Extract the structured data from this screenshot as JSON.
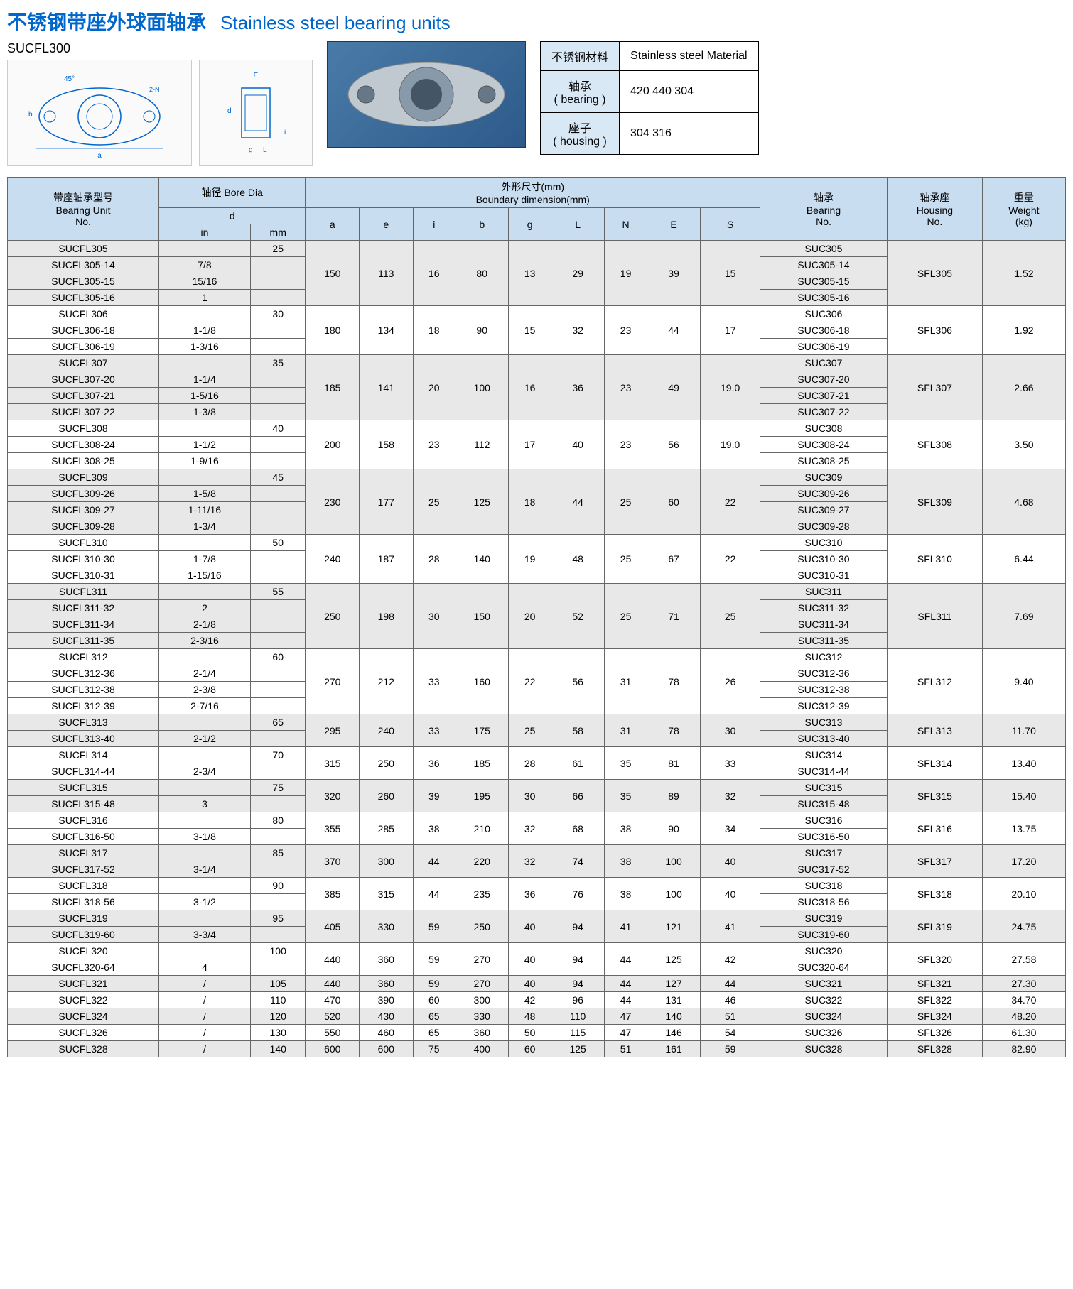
{
  "title": {
    "cn": "不锈钢带座外球面轴承",
    "en": "Stainless steel bearing units"
  },
  "model": "SUCFL300",
  "material": {
    "header_cn": "不锈钢材料",
    "header_en": "Stainless steel Material",
    "bearing_cn": "轴承",
    "bearing_en": "( bearing )",
    "bearing_val": "420 440 304",
    "housing_cn": "座子",
    "housing_en": "( housing )",
    "housing_val": "304 316"
  },
  "headers": {
    "unit_no_cn": "带座轴承型号",
    "unit_no_en": "Bearing Unit",
    "unit_no_en2": "No.",
    "bore_cn": "轴径 Bore Dia",
    "bore_d": "d",
    "bore_in": "in",
    "bore_mm": "mm",
    "dim_cn": "外形尺寸(mm)",
    "dim_en": "Boundary dimension(mm)",
    "a": "a",
    "e": "e",
    "i": "i",
    "b": "b",
    "g": "g",
    "L": "L",
    "N": "N",
    "E": "E",
    "S": "S",
    "brg_cn": "轴承",
    "brg_en": "Bearing",
    "brg_no": "No.",
    "hsg_cn": "轴承座",
    "hsg_en": "Housing",
    "hsg_no": "No.",
    "wt_cn": "重量",
    "wt_en": "Weight",
    "wt_kg": "(kg)"
  },
  "groups": [
    {
      "alt": true,
      "dims": [
        "150",
        "113",
        "16",
        "80",
        "13",
        "29",
        "19",
        "39",
        "15"
      ],
      "hsg": "SFL305",
      "wt": "1.52",
      "rows": [
        {
          "no": "SUCFL305",
          "in": "",
          "mm": "25",
          "brg": "SUC305"
        },
        {
          "no": "SUCFL305-14",
          "in": "7/8",
          "mm": "",
          "brg": "SUC305-14"
        },
        {
          "no": "SUCFL305-15",
          "in": "15/16",
          "mm": "",
          "brg": "SUC305-15"
        },
        {
          "no": "SUCFL305-16",
          "in": "1",
          "mm": "",
          "brg": "SUC305-16"
        }
      ]
    },
    {
      "alt": false,
      "dims": [
        "180",
        "134",
        "18",
        "90",
        "15",
        "32",
        "23",
        "44",
        "17"
      ],
      "hsg": "SFL306",
      "wt": "1.92",
      "rows": [
        {
          "no": "SUCFL306",
          "in": "",
          "mm": "30",
          "brg": "SUC306"
        },
        {
          "no": "SUCFL306-18",
          "in": "1-1/8",
          "mm": "",
          "brg": "SUC306-18"
        },
        {
          "no": "SUCFL306-19",
          "in": "1-3/16",
          "mm": "",
          "brg": "SUC306-19"
        }
      ]
    },
    {
      "alt": true,
      "dims": [
        "185",
        "141",
        "20",
        "100",
        "16",
        "36",
        "23",
        "49",
        "19.0"
      ],
      "hsg": "SFL307",
      "wt": "2.66",
      "rows": [
        {
          "no": "SUCFL307",
          "in": "",
          "mm": "35",
          "brg": "SUC307"
        },
        {
          "no": "SUCFL307-20",
          "in": "1-1/4",
          "mm": "",
          "brg": "SUC307-20"
        },
        {
          "no": "SUCFL307-21",
          "in": "1-5/16",
          "mm": "",
          "brg": "SUC307-21"
        },
        {
          "no": "SUCFL307-22",
          "in": "1-3/8",
          "mm": "",
          "brg": "SUC307-22"
        }
      ]
    },
    {
      "alt": false,
      "dims": [
        "200",
        "158",
        "23",
        "112",
        "17",
        "40",
        "23",
        "56",
        "19.0"
      ],
      "hsg": "SFL308",
      "wt": "3.50",
      "rows": [
        {
          "no": "SUCFL308",
          "in": "",
          "mm": "40",
          "brg": "SUC308"
        },
        {
          "no": "SUCFL308-24",
          "in": "1-1/2",
          "mm": "",
          "brg": "SUC308-24"
        },
        {
          "no": "SUCFL308-25",
          "in": "1-9/16",
          "mm": "",
          "brg": "SUC308-25"
        }
      ]
    },
    {
      "alt": true,
      "dims": [
        "230",
        "177",
        "25",
        "125",
        "18",
        "44",
        "25",
        "60",
        "22"
      ],
      "hsg": "SFL309",
      "wt": "4.68",
      "rows": [
        {
          "no": "SUCFL309",
          "in": "",
          "mm": "45",
          "brg": "SUC309"
        },
        {
          "no": "SUCFL309-26",
          "in": "1-5/8",
          "mm": "",
          "brg": "SUC309-26"
        },
        {
          "no": "SUCFL309-27",
          "in": "1-11/16",
          "mm": "",
          "brg": "SUC309-27"
        },
        {
          "no": "SUCFL309-28",
          "in": "1-3/4",
          "mm": "",
          "brg": "SUC309-28"
        }
      ]
    },
    {
      "alt": false,
      "dims": [
        "240",
        "187",
        "28",
        "140",
        "19",
        "48",
        "25",
        "67",
        "22"
      ],
      "hsg": "SFL310",
      "wt": "6.44",
      "rows": [
        {
          "no": "SUCFL310",
          "in": "",
          "mm": "50",
          "brg": "SUC310"
        },
        {
          "no": "SUCFL310-30",
          "in": "1-7/8",
          "mm": "",
          "brg": "SUC310-30"
        },
        {
          "no": "SUCFL310-31",
          "in": "1-15/16",
          "mm": "",
          "brg": "SUC310-31"
        }
      ]
    },
    {
      "alt": true,
      "dims": [
        "250",
        "198",
        "30",
        "150",
        "20",
        "52",
        "25",
        "71",
        "25"
      ],
      "hsg": "SFL311",
      "wt": "7.69",
      "rows": [
        {
          "no": "SUCFL311",
          "in": "",
          "mm": "55",
          "brg": "SUC311"
        },
        {
          "no": "SUCFL311-32",
          "in": "2",
          "mm": "",
          "brg": "SUC311-32"
        },
        {
          "no": "SUCFL311-34",
          "in": "2-1/8",
          "mm": "",
          "brg": "SUC311-34"
        },
        {
          "no": "SUCFL311-35",
          "in": "2-3/16",
          "mm": "",
          "brg": "SUC311-35"
        }
      ]
    },
    {
      "alt": false,
      "dims": [
        "270",
        "212",
        "33",
        "160",
        "22",
        "56",
        "31",
        "78",
        "26"
      ],
      "hsg": "SFL312",
      "wt": "9.40",
      "rows": [
        {
          "no": "SUCFL312",
          "in": "",
          "mm": "60",
          "brg": "SUC312"
        },
        {
          "no": "SUCFL312-36",
          "in": "2-1/4",
          "mm": "",
          "brg": "SUC312-36"
        },
        {
          "no": "SUCFL312-38",
          "in": "2-3/8",
          "mm": "",
          "brg": "SUC312-38"
        },
        {
          "no": "SUCFL312-39",
          "in": "2-7/16",
          "mm": "",
          "brg": "SUC312-39"
        }
      ]
    },
    {
      "alt": true,
      "dims": [
        "295",
        "240",
        "33",
        "175",
        "25",
        "58",
        "31",
        "78",
        "30"
      ],
      "hsg": "SFL313",
      "wt": "11.70",
      "rows": [
        {
          "no": "SUCFL313",
          "in": "",
          "mm": "65",
          "brg": "SUC313"
        },
        {
          "no": "SUCFL313-40",
          "in": "2-1/2",
          "mm": "",
          "brg": "SUC313-40"
        }
      ]
    },
    {
      "alt": false,
      "dims": [
        "315",
        "250",
        "36",
        "185",
        "28",
        "61",
        "35",
        "81",
        "33"
      ],
      "hsg": "SFL314",
      "wt": "13.40",
      "rows": [
        {
          "no": "SUCFL314",
          "in": "",
          "mm": "70",
          "brg": "SUC314"
        },
        {
          "no": "SUCFL314-44",
          "in": "2-3/4",
          "mm": "",
          "brg": "SUC314-44"
        }
      ]
    },
    {
      "alt": true,
      "dims": [
        "320",
        "260",
        "39",
        "195",
        "30",
        "66",
        "35",
        "89",
        "32"
      ],
      "hsg": "SFL315",
      "wt": "15.40",
      "rows": [
        {
          "no": "SUCFL315",
          "in": "",
          "mm": "75",
          "brg": "SUC315"
        },
        {
          "no": "SUCFL315-48",
          "in": "3",
          "mm": "",
          "brg": "SUC315-48"
        }
      ]
    },
    {
      "alt": false,
      "dims": [
        "355",
        "285",
        "38",
        "210",
        "32",
        "68",
        "38",
        "90",
        "34"
      ],
      "hsg": "SFL316",
      "wt": "13.75",
      "rows": [
        {
          "no": "SUCFL316",
          "in": "",
          "mm": "80",
          "brg": "SUC316"
        },
        {
          "no": "SUCFL316-50",
          "in": "3-1/8",
          "mm": "",
          "brg": "SUC316-50"
        }
      ]
    },
    {
      "alt": true,
      "dims": [
        "370",
        "300",
        "44",
        "220",
        "32",
        "74",
        "38",
        "100",
        "40"
      ],
      "hsg": "SFL317",
      "wt": "17.20",
      "rows": [
        {
          "no": "SUCFL317",
          "in": "",
          "mm": "85",
          "brg": "SUC317"
        },
        {
          "no": "SUCFL317-52",
          "in": "3-1/4",
          "mm": "",
          "brg": "SUC317-52"
        }
      ]
    },
    {
      "alt": false,
      "dims": [
        "385",
        "315",
        "44",
        "235",
        "36",
        "76",
        "38",
        "100",
        "40"
      ],
      "hsg": "SFL318",
      "wt": "20.10",
      "rows": [
        {
          "no": "SUCFL318",
          "in": "",
          "mm": "90",
          "brg": "SUC318"
        },
        {
          "no": "SUCFL318-56",
          "in": "3-1/2",
          "mm": "",
          "brg": "SUC318-56"
        }
      ]
    },
    {
      "alt": true,
      "dims": [
        "405",
        "330",
        "59",
        "250",
        "40",
        "94",
        "41",
        "121",
        "41"
      ],
      "hsg": "SFL319",
      "wt": "24.75",
      "rows": [
        {
          "no": "SUCFL319",
          "in": "",
          "mm": "95",
          "brg": "SUC319"
        },
        {
          "no": "SUCFL319-60",
          "in": "3-3/4",
          "mm": "",
          "brg": "SUC319-60"
        }
      ]
    },
    {
      "alt": false,
      "dims": [
        "440",
        "360",
        "59",
        "270",
        "40",
        "94",
        "44",
        "125",
        "42"
      ],
      "hsg": "SFL320",
      "wt": "27.58",
      "rows": [
        {
          "no": "SUCFL320",
          "in": "",
          "mm": "100",
          "brg": "SUC320"
        },
        {
          "no": "SUCFL320-64",
          "in": "4",
          "mm": "",
          "brg": "SUC320-64"
        }
      ]
    },
    {
      "alt": true,
      "dims": [
        "440",
        "360",
        "59",
        "270",
        "40",
        "94",
        "44",
        "127",
        "44"
      ],
      "hsg": "SFL321",
      "wt": "27.30",
      "rows": [
        {
          "no": "SUCFL321",
          "in": "/",
          "mm": "105",
          "brg": "SUC321"
        }
      ]
    },
    {
      "alt": false,
      "dims": [
        "470",
        "390",
        "60",
        "300",
        "42",
        "96",
        "44",
        "131",
        "46"
      ],
      "hsg": "SFL322",
      "wt": "34.70",
      "rows": [
        {
          "no": "SUCFL322",
          "in": "/",
          "mm": "110",
          "brg": "SUC322"
        }
      ]
    },
    {
      "alt": true,
      "dims": [
        "520",
        "430",
        "65",
        "330",
        "48",
        "110",
        "47",
        "140",
        "51"
      ],
      "hsg": "SFL324",
      "wt": "48.20",
      "rows": [
        {
          "no": "SUCFL324",
          "in": "/",
          "mm": "120",
          "brg": "SUC324"
        }
      ]
    },
    {
      "alt": false,
      "dims": [
        "550",
        "460",
        "65",
        "360",
        "50",
        "115",
        "47",
        "146",
        "54"
      ],
      "hsg": "SFL326",
      "wt": "61.30",
      "rows": [
        {
          "no": "SUCFL326",
          "in": "/",
          "mm": "130",
          "brg": "SUC326"
        }
      ]
    },
    {
      "alt": true,
      "dims": [
        "600",
        "600",
        "75",
        "400",
        "60",
        "125",
        "51",
        "161",
        "59"
      ],
      "hsg": "SFL328",
      "wt": "82.90",
      "rows": [
        {
          "no": "SUCFL328",
          "in": "/",
          "mm": "140",
          "brg": "SUC328"
        }
      ]
    }
  ]
}
